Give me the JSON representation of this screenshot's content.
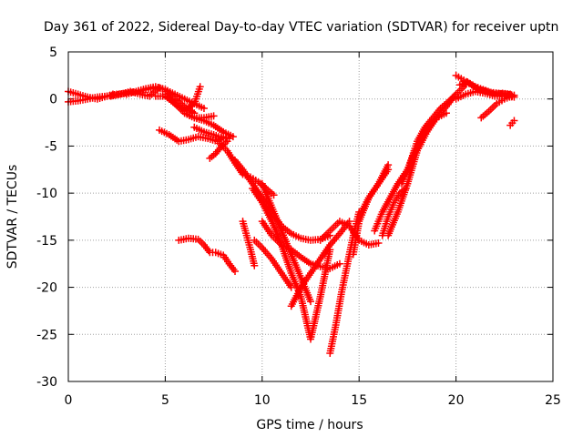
{
  "chart_data": {
    "type": "scatter",
    "title": "Day 361 of 2022, Sidereal Day-to-day VTEC variation (SDTVAR) for receiver uptn",
    "xlabel": "GPS time / hours",
    "ylabel": "SDTVAR / TECUs",
    "xlim": [
      0,
      25
    ],
    "ylim": [
      -30,
      5
    ],
    "xticks": [
      "0",
      "5",
      "10",
      "15",
      "20",
      "25"
    ],
    "yticks": [
      "5",
      "0",
      "-5",
      "-10",
      "-15",
      "-20",
      "-25",
      "-30"
    ],
    "grid": true,
    "marker": "+",
    "color": "#ff0000",
    "series": [
      {
        "x": [
          0.0,
          0.5,
          1.0,
          1.5,
          2.0,
          2.5,
          3.0,
          3.5,
          4.0,
          4.5
        ],
        "y": [
          0.8,
          0.5,
          0.2,
          0.0,
          0.3,
          0.5,
          0.6,
          0.8,
          1.0,
          1.2
        ]
      },
      {
        "x": [
          0.0,
          0.5,
          1.0,
          1.5,
          2.0,
          2.3
        ],
        "y": [
          -0.3,
          -0.2,
          0.0,
          0.2,
          0.3,
          0.5
        ]
      },
      {
        "x": [
          2.2,
          2.7,
          3.2,
          3.7,
          4.2,
          4.7,
          5.0,
          5.5,
          6.0,
          6.5
        ],
        "y": [
          0.3,
          0.5,
          0.8,
          0.5,
          0.3,
          1.2,
          1.0,
          0.0,
          -0.8,
          -1.5
        ]
      },
      {
        "x": [
          3.0,
          3.5,
          4.0,
          4.5,
          5.0,
          5.5,
          6.0,
          6.5,
          7.0
        ],
        "y": [
          0.5,
          0.8,
          1.1,
          1.3,
          1.0,
          0.5,
          0.0,
          -0.5,
          -1.0
        ]
      },
      {
        "x": [
          4.5,
          5.0,
          5.5,
          6.0,
          6.5,
          7.0,
          7.5,
          8.0,
          8.5
        ],
        "y": [
          0.3,
          0.3,
          -0.5,
          -1.5,
          -2.0,
          -2.3,
          -2.8,
          -3.5,
          -4.0
        ]
      },
      {
        "x": [
          5.0,
          5.5,
          6.0,
          6.5,
          6.8
        ],
        "y": [
          0.5,
          -0.5,
          -1.2,
          -0.5,
          1.3
        ]
      },
      {
        "x": [
          6.0,
          6.5,
          7.0,
          7.5
        ],
        "y": [
          -1.5,
          -2.0,
          -2.0,
          -1.8
        ]
      },
      {
        "x": [
          4.7,
          5.2,
          5.7,
          6.2,
          6.7,
          7.2,
          7.7,
          8.0,
          8.3
        ],
        "y": [
          -3.3,
          -3.8,
          -4.5,
          -4.3,
          -4.0,
          -4.2,
          -4.5,
          -4.0,
          -4.2
        ]
      },
      {
        "x": [
          6.5,
          7.0,
          7.5,
          8.0
        ],
        "y": [
          -3.0,
          -3.5,
          -3.8,
          -4.2
        ]
      },
      {
        "x": [
          7.3,
          7.6,
          7.9,
          8.2
        ],
        "y": [
          -6.3,
          -5.8,
          -5.0,
          -4.5
        ]
      },
      {
        "x": [
          7.8,
          8.2,
          8.6,
          9.0,
          9.4,
          9.8,
          10.2,
          10.6
        ],
        "y": [
          -4.7,
          -5.5,
          -6.8,
          -8.0,
          -8.3,
          -8.8,
          -9.5,
          -10.2
        ]
      },
      {
        "x": [
          8.6,
          9.0,
          9.5,
          10.0,
          10.5,
          11.0,
          11.5,
          12.0,
          12.5,
          13.0,
          13.5
        ],
        "y": [
          -6.5,
          -7.5,
          -9.0,
          -10.5,
          -12.0,
          -13.5,
          -14.3,
          -14.8,
          -15.0,
          -14.9,
          -14.5
        ]
      },
      {
        "x": [
          9.5,
          10.0,
          10.5,
          11.0,
          11.5,
          12.0,
          12.5,
          13.0,
          13.5
        ],
        "y": [
          -9.5,
          -11.0,
          -13.0,
          -15.5,
          -18.5,
          -21.0,
          -25.5,
          -21.0,
          -16.0
        ]
      },
      {
        "x": [
          10.0,
          10.5,
          11.0,
          11.5,
          12.0,
          12.5
        ],
        "y": [
          -9.0,
          -11.5,
          -14.0,
          -16.5,
          -19.0,
          -21.5
        ]
      },
      {
        "x": [
          10.0,
          10.5,
          11.0,
          11.5,
          12.0,
          12.5,
          13.0,
          13.5,
          14.0
        ],
        "y": [
          -13.0,
          -14.5,
          -15.5,
          -16.0,
          -16.8,
          -17.5,
          -17.8,
          -18.0,
          -17.5
        ]
      },
      {
        "x": [
          9.6,
          10.0,
          10.5,
          11.0,
          11.5
        ],
        "y": [
          -15.0,
          -15.8,
          -17.0,
          -18.5,
          -20.0
        ]
      },
      {
        "x": [
          13.5,
          13.8,
          14.1,
          14.4,
          14.7,
          15.0
        ],
        "y": [
          -27.0,
          -24.0,
          -20.5,
          -17.5,
          -14.5,
          -12.0
        ]
      },
      {
        "x": [
          11.5,
          12.0,
          12.5,
          13.0,
          13.5,
          14.0,
          14.5
        ],
        "y": [
          -22.0,
          -20.0,
          -18.5,
          -17.0,
          -15.5,
          -14.3,
          -13.0
        ]
      },
      {
        "x": [
          13.0,
          13.5,
          14.0,
          14.5,
          15.0,
          15.5,
          16.0
        ],
        "y": [
          -15.0,
          -14.0,
          -13.0,
          -13.5,
          -15.0,
          -15.5,
          -15.3
        ]
      },
      {
        "x": [
          14.7,
          15.0,
          15.5,
          16.0,
          16.5
        ],
        "y": [
          -16.5,
          -13.0,
          -10.5,
          -9.0,
          -7.5
        ]
      },
      {
        "x": [
          15.0,
          15.5,
          16.0,
          16.5
        ],
        "y": [
          -12.5,
          -10.5,
          -9.0,
          -7.0
        ]
      },
      {
        "x": [
          15.8,
          16.2,
          16.6,
          17.0,
          17.5,
          18.0,
          18.5
        ],
        "y": [
          -14.0,
          -12.0,
          -10.5,
          -9.0,
          -7.5,
          -5.0,
          -3.0
        ]
      },
      {
        "x": [
          16.5,
          17.0,
          17.5,
          18.0,
          18.5,
          19.0,
          19.5,
          20.0,
          20.5
        ],
        "y": [
          -14.5,
          -12.0,
          -9.0,
          -5.5,
          -3.5,
          -2.0,
          -0.8,
          0.5,
          1.5
        ]
      },
      {
        "x": [
          16.2,
          16.5,
          16.8,
          17.1,
          17.4
        ],
        "y": [
          -14.5,
          -12.5,
          -11.0,
          -10.0,
          -9.5
        ]
      },
      {
        "x": [
          17.2,
          17.6,
          18.0,
          18.4,
          18.8,
          19.2,
          19.6,
          20.0
        ],
        "y": [
          -9.0,
          -7.0,
          -4.5,
          -3.0,
          -2.0,
          -1.0,
          -0.3,
          0.5
        ]
      },
      {
        "x": [
          18.0,
          18.5,
          19.0,
          19.5
        ],
        "y": [
          -5.0,
          -3.0,
          -2.0,
          -1.5
        ]
      },
      {
        "x": [
          20.0,
          20.4,
          20.8,
          21.2,
          21.6,
          22.0,
          22.4,
          22.8
        ],
        "y": [
          2.5,
          2.0,
          1.5,
          1.0,
          0.8,
          0.5,
          0.6,
          0.5
        ]
      },
      {
        "x": [
          20.2,
          20.6,
          21.0,
          21.4,
          21.8,
          22.2,
          22.6,
          23.0
        ],
        "y": [
          1.5,
          1.8,
          1.3,
          1.0,
          0.7,
          0.6,
          0.5,
          0.4
        ]
      },
      {
        "x": [
          20.0,
          20.5,
          21.0,
          21.5,
          22.0,
          22.5,
          23.0
        ],
        "y": [
          0.0,
          0.5,
          0.8,
          0.6,
          0.3,
          0.3,
          0.2
        ]
      },
      {
        "x": [
          21.3,
          21.7,
          22.1,
          22.5,
          22.9
        ],
        "y": [
          -2.0,
          -1.3,
          -0.5,
          0.0,
          0.3
        ]
      },
      {
        "x": [
          22.8,
          23.0
        ],
        "y": [
          -2.8,
          -2.3
        ]
      },
      {
        "x": [
          5.7,
          6.2,
          6.7,
          7.0,
          7.3,
          7.6,
          8.0,
          8.3,
          8.6
        ],
        "y": [
          -15.0,
          -14.8,
          -14.9,
          -15.5,
          -16.3,
          -16.3,
          -16.6,
          -17.5,
          -18.3
        ]
      },
      {
        "x": [
          9.0,
          9.2,
          9.4,
          9.6
        ],
        "y": [
          -13.0,
          -14.5,
          -16.0,
          -17.7
        ]
      }
    ]
  }
}
